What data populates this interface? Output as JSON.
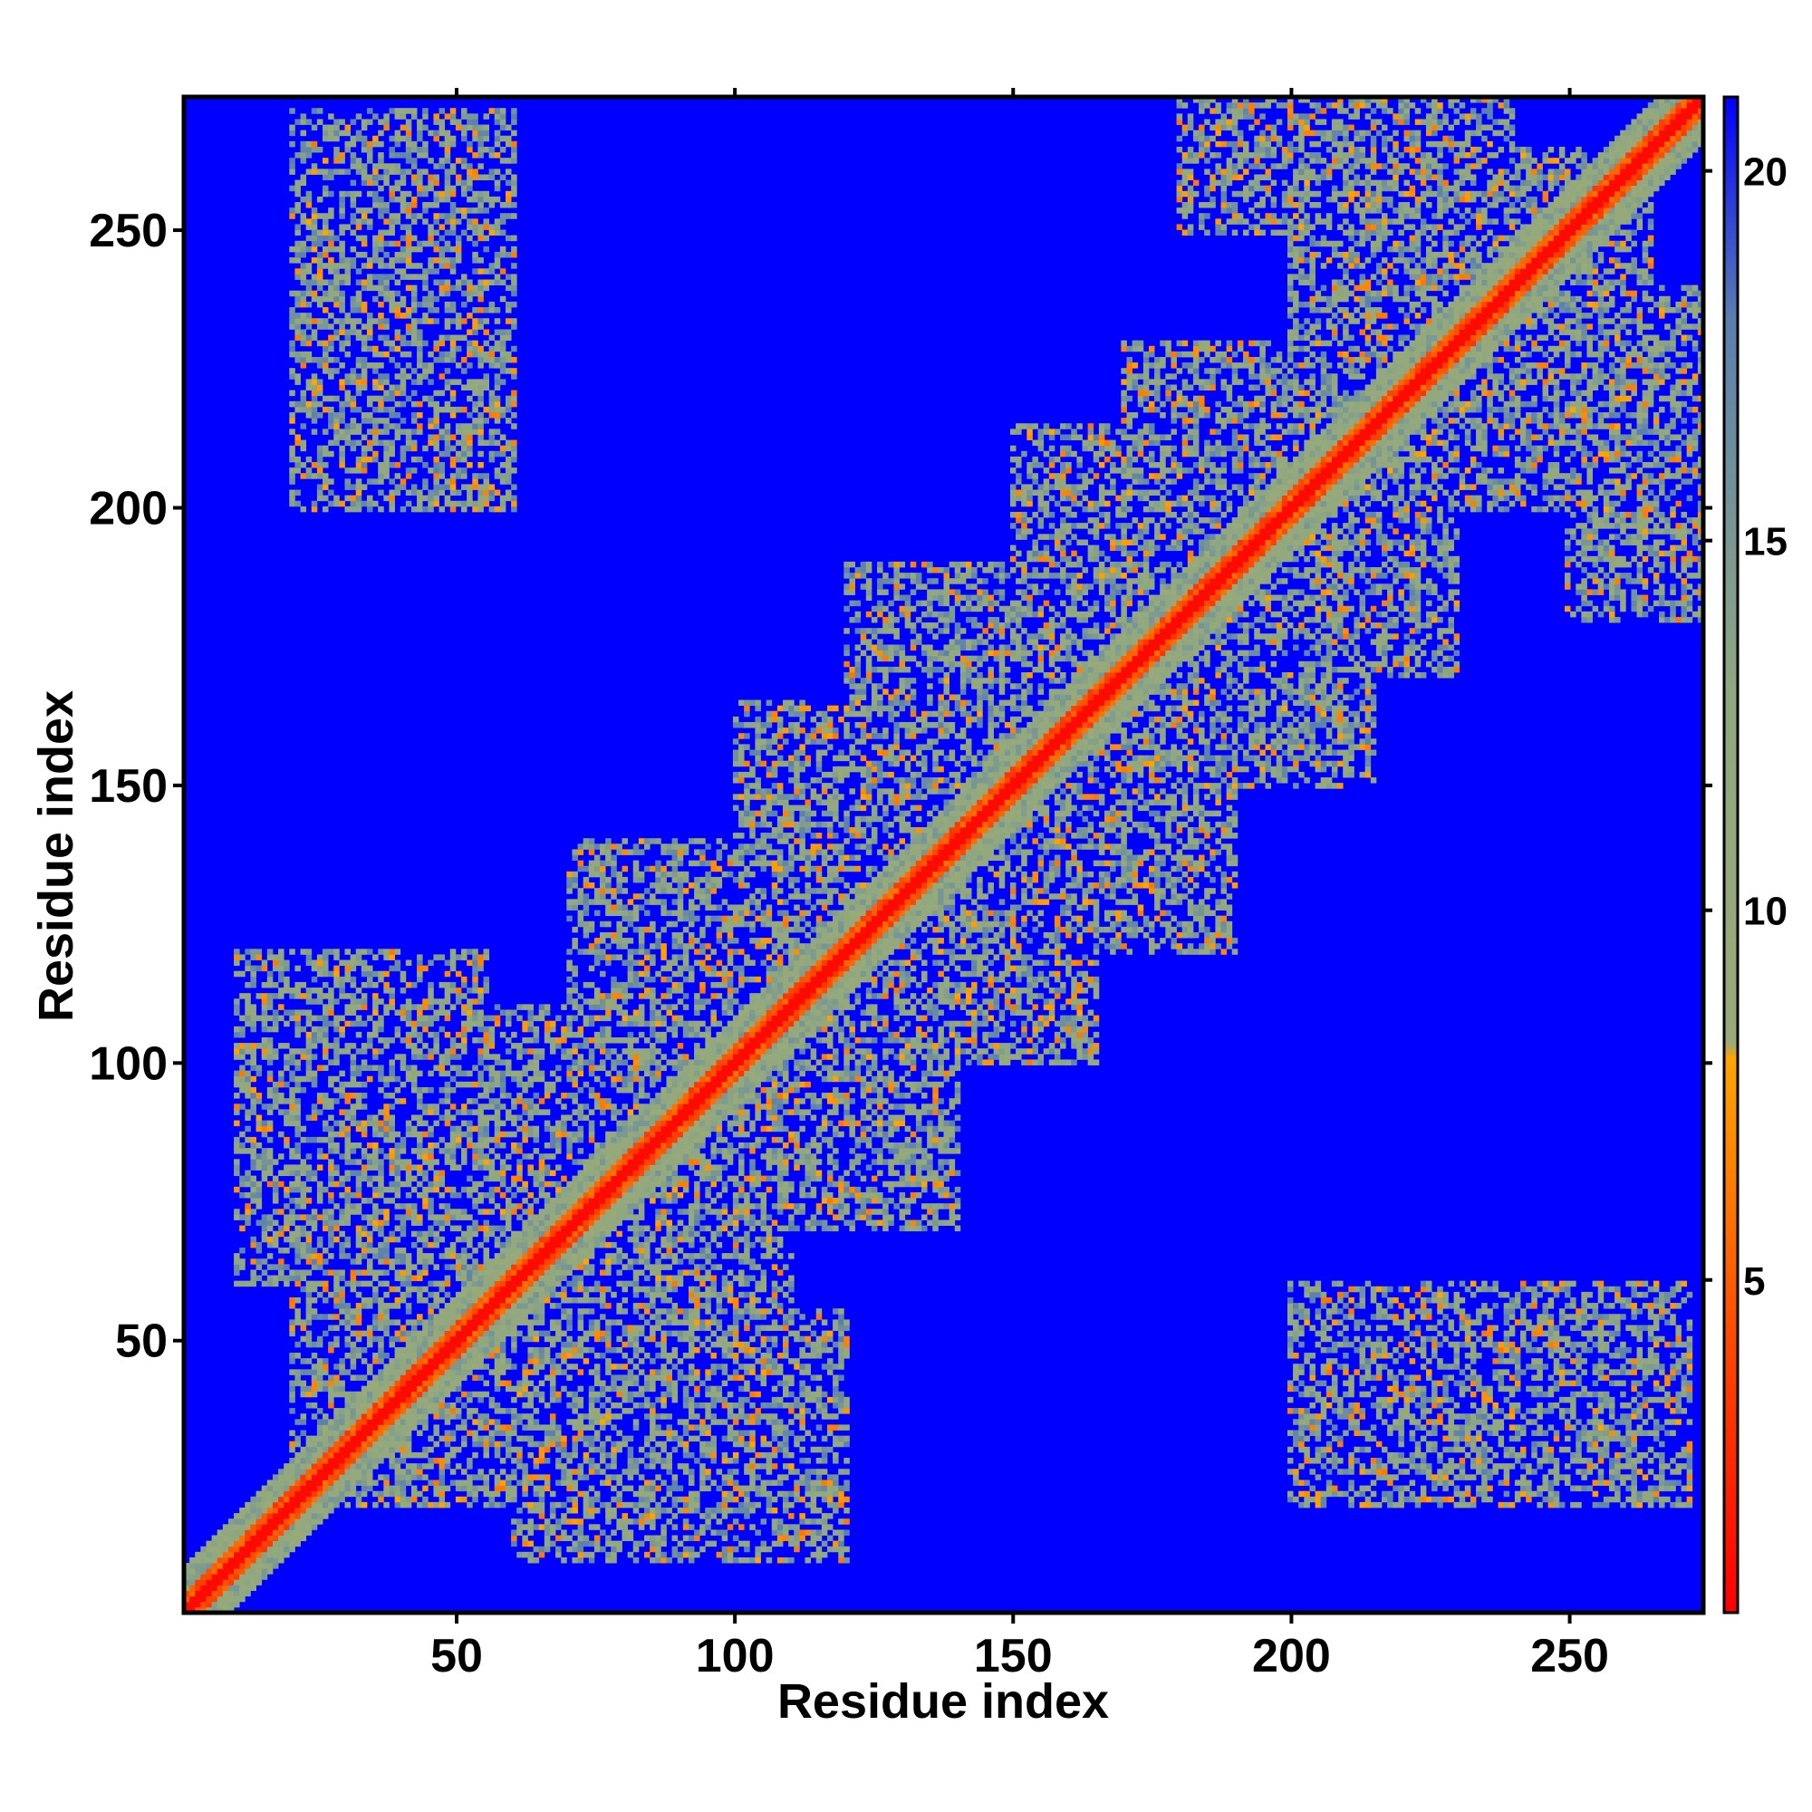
{
  "chart_data": {
    "type": "heatmap",
    "title": "",
    "xlabel": "Residue index",
    "ylabel": "Residue index",
    "xlim": [
      1,
      274
    ],
    "ylim": [
      1,
      274
    ],
    "x_ticks": [
      50,
      100,
      150,
      200,
      250
    ],
    "y_ticks": [
      50,
      100,
      150,
      200,
      250
    ],
    "x_tick_labels": [
      "50",
      "100",
      "150",
      "200",
      "250"
    ],
    "y_tick_labels": [
      "50",
      "100",
      "150",
      "200",
      "250"
    ],
    "colorbar": {
      "range": [
        0.5,
        21
      ],
      "ticks": [
        5,
        10,
        15,
        20
      ],
      "tick_labels": [
        "5",
        "10",
        "15",
        "20"
      ],
      "colors": [
        {
          "value": 0.5,
          "color": "#ff0000"
        },
        {
          "value": 4,
          "color": "#ff4500"
        },
        {
          "value": 8,
          "color": "#ffa500"
        },
        {
          "value": 8.2,
          "color": "#9aaa78"
        },
        {
          "value": 13,
          "color": "#8fa880"
        },
        {
          "value": 18,
          "color": "#5a7fb0"
        },
        {
          "value": 21,
          "color": "#0000ff"
        }
      ]
    },
    "background_value": 21,
    "background_color": "#0000ff",
    "diagonal_color": "#ff0000",
    "contact_clusters": [
      {
        "x": [
          1,
          274
        ],
        "y": [
          1,
          274
        ],
        "kind": "diagonal"
      },
      {
        "x": [
          30,
          80
        ],
        "y": [
          20,
          60
        ],
        "kind": "cluster"
      },
      {
        "x": [
          60,
          110
        ],
        "y": [
          40,
          90
        ],
        "kind": "cluster"
      },
      {
        "x": [
          85,
          140
        ],
        "y": [
          70,
          120
        ],
        "kind": "cluster"
      },
      {
        "x": [
          110,
          165
        ],
        "y": [
          100,
          145
        ],
        "kind": "cluster"
      },
      {
        "x": [
          140,
          190
        ],
        "y": [
          120,
          175
        ],
        "kind": "cluster"
      },
      {
        "x": [
          165,
          215
        ],
        "y": [
          150,
          200
        ],
        "kind": "cluster"
      },
      {
        "x": [
          185,
          230
        ],
        "y": [
          170,
          225
        ],
        "kind": "cluster"
      },
      {
        "x": [
          215,
          265
        ],
        "y": [
          200,
          255
        ],
        "kind": "cluster"
      },
      {
        "x": [
          20,
          60
        ],
        "y": [
          215,
          272
        ],
        "kind": "cluster"
      },
      {
        "x": [
          200,
          270
        ],
        "y": [
          20,
          60
        ],
        "kind": "cluster"
      },
      {
        "x": [
          250,
          274
        ],
        "y": [
          180,
          240
        ],
        "kind": "cluster"
      },
      {
        "x": [
          10,
          55
        ],
        "y": [
          60,
          120
        ],
        "kind": "cluster"
      },
      {
        "x": [
          60,
          120
        ],
        "y": [
          10,
          55
        ],
        "kind": "cluster"
      }
    ]
  }
}
